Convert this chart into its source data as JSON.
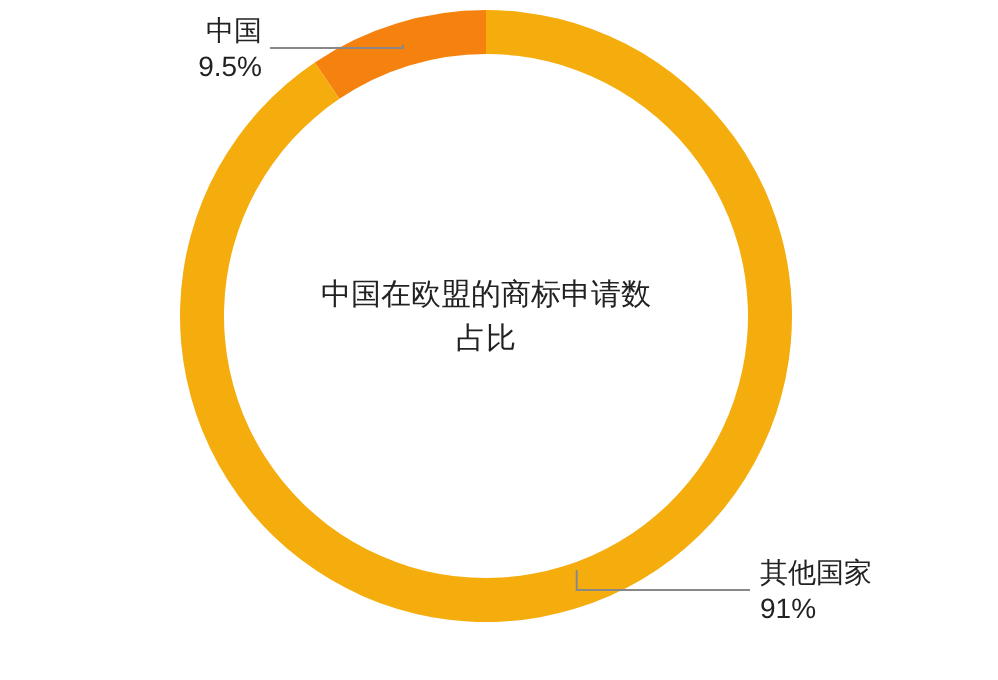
{
  "chart_data": {
    "type": "donut",
    "title": "中国在欧盟的商标申请数占比",
    "categories": [
      "中国",
      "其他国家"
    ],
    "values": [
      9.5,
      91
    ],
    "colors": [
      "#f5820f",
      "#f5ad0e"
    ],
    "value_labels": [
      "9.5%",
      "91%"
    ]
  }
}
